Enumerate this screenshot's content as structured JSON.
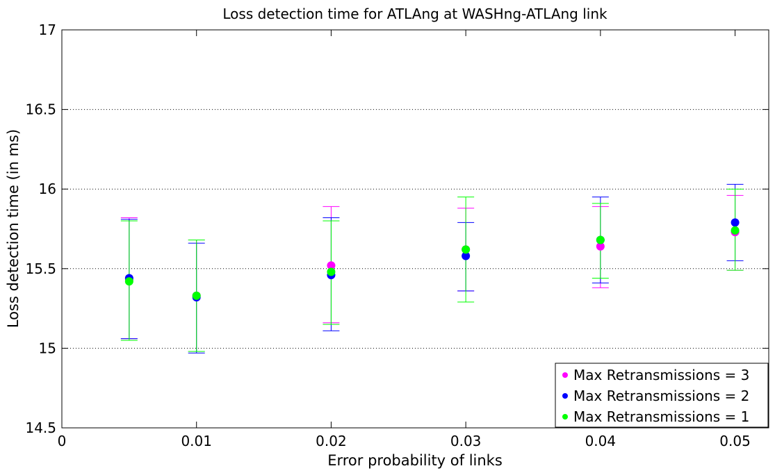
{
  "chart_data": {
    "type": "scatter",
    "title": "Loss detection time for ATLAng at WASHng-ATLAng link",
    "xlabel": "Error probability of links",
    "ylabel": "Loss detection time (in ms)",
    "xlim": [
      0,
      0.0525
    ],
    "ylim": [
      14.5,
      17
    ],
    "xticks": [
      0,
      0.01,
      0.02,
      0.03,
      0.04,
      0.05
    ],
    "xtick_labels": [
      "0",
      "0.01",
      "0.02",
      "0.03",
      "0.04",
      "0.05"
    ],
    "yticks": [
      14.5,
      15,
      15.5,
      16,
      16.5,
      17
    ],
    "ytick_labels": [
      "14.5",
      "15",
      "15.5",
      "16",
      "16.5",
      "17"
    ],
    "grid": "horizontal-dotted",
    "legend_position": "bottom-right",
    "x": [
      0.005,
      0.01,
      0.02,
      0.03,
      0.04,
      0.05
    ],
    "series": [
      {
        "name": "Max Retransmissions = 3",
        "color": "#ff00ff",
        "values": [
          15.43,
          15.33,
          15.52,
          15.62,
          15.64,
          15.73
        ],
        "err_low": [
          15.06,
          14.98,
          15.16,
          15.36,
          15.38,
          15.49
        ],
        "err_high": [
          15.82,
          15.68,
          15.89,
          15.88,
          15.89,
          15.96
        ]
      },
      {
        "name": "Max Retransmissions = 2",
        "color": "#0000ff",
        "values": [
          15.44,
          15.32,
          15.46,
          15.58,
          15.68,
          15.79
        ],
        "err_low": [
          15.06,
          14.97,
          15.11,
          15.36,
          15.41,
          15.55
        ],
        "err_high": [
          15.81,
          15.66,
          15.82,
          15.79,
          15.95,
          16.03
        ]
      },
      {
        "name": "Max Retransmissions = 1",
        "color": "#00ff00",
        "values": [
          15.42,
          15.33,
          15.48,
          15.62,
          15.68,
          15.74
        ],
        "err_low": [
          15.05,
          14.98,
          15.15,
          15.29,
          15.44,
          15.49
        ],
        "err_high": [
          15.8,
          15.68,
          15.8,
          15.95,
          15.91,
          16.0
        ]
      }
    ]
  }
}
